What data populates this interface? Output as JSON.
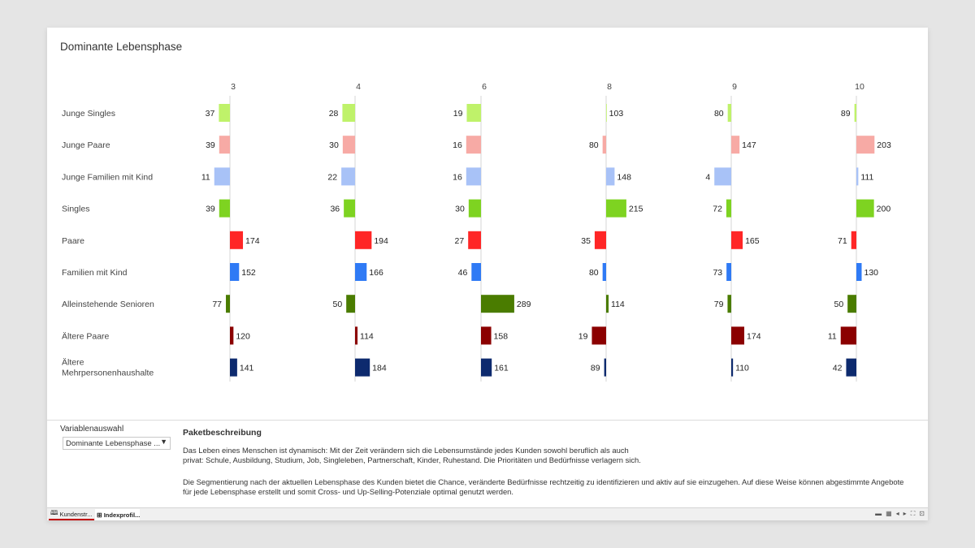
{
  "title": "Dominante Lebensphase",
  "chart_data": {
    "type": "bar",
    "orientation": "horizontal",
    "diverging": true,
    "baseline": 100,
    "columns": [
      "3",
      "4",
      "6",
      "8",
      "9",
      "10"
    ],
    "categories": [
      "Junge Singles",
      "Junge Paare",
      "Junge Familien mit Kind",
      "Singles",
      "Paare",
      "Familien mit Kind",
      "Alleinstehende Senioren",
      "Ältere Paare",
      "Ältere Mehrpersonenhaushalte"
    ],
    "category_colors": [
      "#bff26a",
      "#f7aaa5",
      "#a8c2f7",
      "#7ed321",
      "#ff2626",
      "#2f7af5",
      "#4a7c00",
      "#8b0000",
      "#0d2a6e"
    ],
    "values": [
      [
        37,
        28,
        19,
        103,
        80,
        89
      ],
      [
        39,
        30,
        16,
        80,
        147,
        203
      ],
      [
        11,
        22,
        16,
        148,
        4,
        111
      ],
      [
        39,
        36,
        30,
        215,
        72,
        200
      ],
      [
        174,
        194,
        27,
        35,
        165,
        71
      ],
      [
        152,
        166,
        46,
        80,
        73,
        130
      ],
      [
        77,
        50,
        289,
        114,
        79,
        50
      ],
      [
        120,
        114,
        158,
        19,
        174,
        11
      ],
      [
        141,
        184,
        161,
        89,
        110,
        42
      ]
    ],
    "grid": false,
    "legend": "none"
  },
  "bottom": {
    "variable_label": "Variablenauswahl",
    "dropdown_value": "Dominante Lebensphase ...",
    "description_title": "Paketbeschreibung",
    "paragraph1_line1": "Das Leben eines Menschen ist dynamisch: Mit der Zeit verändern sich die Lebensumstände jedes Kunden sowohl beruflich als auch",
    "paragraph1_line2": "privat: Schule, Ausbildung, Studium, Job, Singleleben, Partnerschaft, Kinder, Ruhestand. Die Prioritäten und Bedürfnisse verlagern sich.",
    "paragraph2_line1": "Die Segmentierung nach der aktuellen Lebensphase des Kunden bietet die Chance, veränderte Bedürfnisse rechtzeitig zu identifizieren und aktiv auf sie einzugehen. Auf diese Weise können abgestimmte Angebote",
    "paragraph2_line2": "für jede Lebensphase erstellt und somit Cross- und Up-Selling-Potenziale optimal genutzt werden."
  },
  "tabs": [
    {
      "label": "Kundenstr...",
      "icon": "book-icon"
    },
    {
      "label": "Indexprofil...",
      "icon": "grid-icon"
    }
  ],
  "nav_icons": [
    "sheet-view-icon",
    "grid-view-icon",
    "prev-icon",
    "next-icon",
    "fullscreen-icon",
    "present-icon"
  ]
}
